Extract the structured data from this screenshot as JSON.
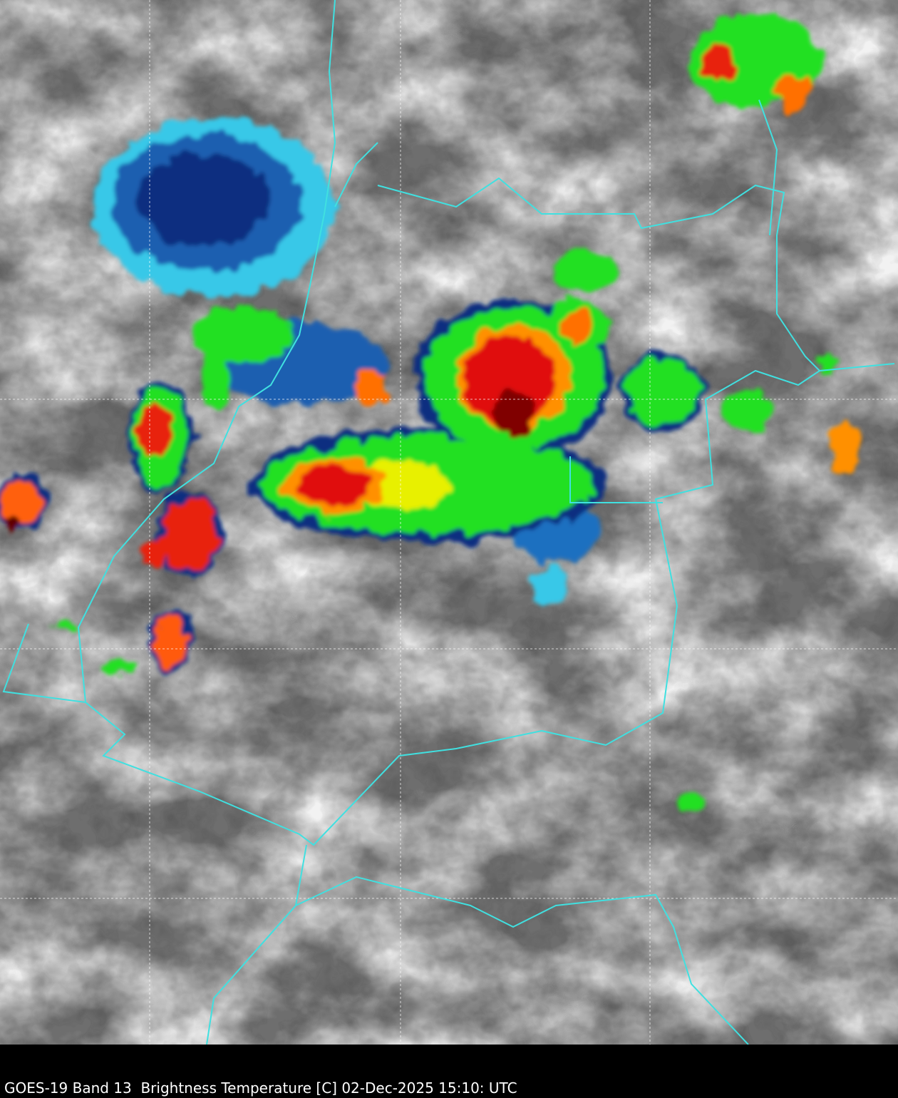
{
  "caption": "GOES-19 Band 13  Brightness Temperature [C] 02-Dec-2025 15:10: UTC"
}
